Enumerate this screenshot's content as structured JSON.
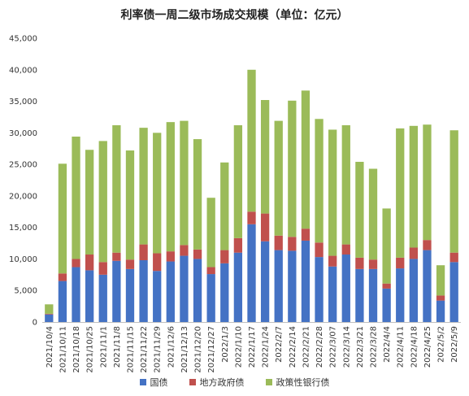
{
  "chart_data": {
    "type": "bar",
    "stacked": true,
    "title": "利率债一周二级市场成交规模（单位：亿元）",
    "categories": [
      "2021/10/4",
      "2021/10/11",
      "2021/10/18",
      "2021/10/25",
      "2021/11/1",
      "2021/11/8",
      "2021/11/15",
      "2021/11/22",
      "2021/11/29",
      "2021/12/6",
      "2021/12/13",
      "2021/12/20",
      "2021/12/27",
      "2022/1/3",
      "2022/1/10",
      "2022/1/17",
      "2022/1/24",
      "2022/2/7",
      "2022/2/14",
      "2022/2/21",
      "2022/2/28",
      "2022/3/07",
      "2022/3/14",
      "2022/3/21",
      "2022/3/28",
      "2022/4/4",
      "2022/4/11",
      "2022/4/18",
      "2022/4/25",
      "2022/5/2",
      "2022/5/9"
    ],
    "y_ticks": [
      "0",
      "5,000",
      "10,000",
      "15,000",
      "20,000",
      "25,000",
      "30,000",
      "35,000",
      "40,000",
      "45,000"
    ],
    "ylim": [
      0,
      45000
    ],
    "grid": false,
    "legend_position": "bottom",
    "series": [
      {
        "name": "国债",
        "color": "#4472C4",
        "values": [
          1200,
          6500,
          8700,
          8200,
          7500,
          9700,
          8400,
          9800,
          8100,
          9600,
          10500,
          10000,
          7600,
          9300,
          11000,
          15500,
          12800,
          11400,
          11300,
          12900,
          10300,
          8800,
          10700,
          8400,
          8400,
          5300,
          8500,
          10000,
          11400,
          3400,
          9500
        ]
      },
      {
        "name": "地方政府债",
        "color": "#C0504D",
        "values": [
          100,
          1200,
          1300,
          2500,
          2000,
          1300,
          1500,
          2500,
          2800,
          1600,
          1700,
          1500,
          1100,
          2100,
          2300,
          2000,
          4400,
          2300,
          2200,
          1900,
          2300,
          1700,
          1600,
          1800,
          1500,
          800,
          1700,
          1800,
          1600,
          800,
          1500
        ]
      },
      {
        "name": "政策性银行债",
        "color": "#9BBB59",
        "values": [
          1500,
          17400,
          19400,
          16600,
          19200,
          20200,
          17300,
          18500,
          19100,
          20500,
          19700,
          17500,
          11000,
          13900,
          17900,
          22500,
          18000,
          18200,
          21600,
          21900,
          19600,
          20000,
          18900,
          15200,
          14400,
          11900,
          20500,
          19300,
          18300,
          4800,
          19400
        ]
      }
    ]
  }
}
